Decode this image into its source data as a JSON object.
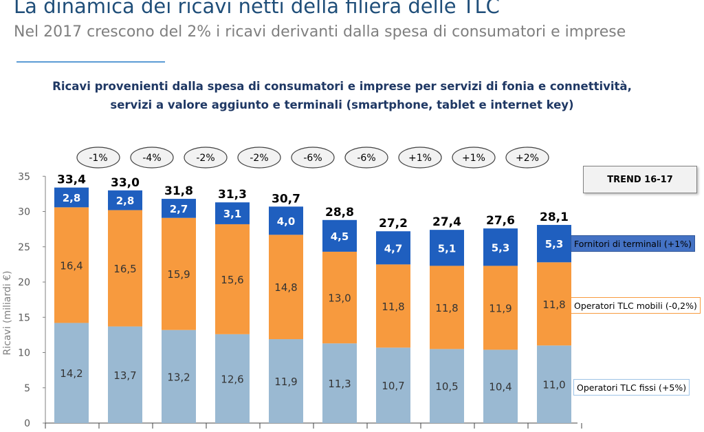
{
  "header": {
    "title": "La dinamica dei ricavi netti della filiera delle TLC",
    "subtitle": "Nel 2017 crescono del 2% i ricavi derivanti dalla spesa di consumatori e imprese"
  },
  "chart_title_lines": [
    "Ricavi provenienti dalla spesa di consumatori e imprese per servizi di fonia e connettività,",
    "servizi a valore aggiunto e terminali (smartphone, tablet e internet key)"
  ],
  "trend_label": "TREND 16-17",
  "legend": {
    "terminali": "Fornitori di terminali (+1%)",
    "mobili": "Operatori TLC mobili (-0,2%)",
    "fissi": "Operatori TLC fissi (+5%)"
  },
  "colors": {
    "fissi": "#9ab9d2",
    "mobili": "#f79a3e",
    "terminali": "#1f5fbf",
    "axis": "#7f7f7f"
  },
  "chart_data": {
    "type": "bar",
    "stacked": true,
    "ylabel": "Ricavi (miliardi €)",
    "ylim": [
      0,
      35
    ],
    "yticks": [
      0,
      5,
      10,
      15,
      20,
      25,
      30,
      35
    ],
    "grid": false,
    "series": [
      {
        "name": "Operatori TLC fissi",
        "key": "fissi",
        "values": [
          14.2,
          13.7,
          13.2,
          12.6,
          11.9,
          11.3,
          10.7,
          10.5,
          10.4,
          11.0
        ],
        "labels": [
          "14,2",
          "13,7",
          "13,2",
          "12,6",
          "11,9",
          "11,3",
          "10,7",
          "10,5",
          "10,4",
          "11,0"
        ]
      },
      {
        "name": "Operatori TLC mobili",
        "key": "mobili",
        "values": [
          16.4,
          16.5,
          15.9,
          15.6,
          14.8,
          13.0,
          11.8,
          11.8,
          11.9,
          11.8
        ],
        "labels": [
          "16,4",
          "16,5",
          "15,9",
          "15,6",
          "14,8",
          "13,0",
          "11,8",
          "11,8",
          "11,9",
          "11,8"
        ]
      },
      {
        "name": "Fornitori di terminali",
        "key": "terminali",
        "values": [
          2.8,
          2.8,
          2.7,
          3.1,
          4.0,
          4.5,
          4.7,
          5.1,
          5.3,
          5.3
        ],
        "labels": [
          "2,8",
          "2,8",
          "2,7",
          "3,1",
          "4,0",
          "4,5",
          "4,7",
          "5,1",
          "5,3",
          "5,3"
        ]
      }
    ],
    "totals": [
      33.4,
      33.0,
      31.8,
      31.3,
      30.7,
      28.8,
      27.2,
      27.4,
      27.6,
      28.1
    ],
    "total_labels": [
      "33,4",
      "33,0",
      "31,8",
      "31,3",
      "30,7",
      "28,8",
      "27,2",
      "27,4",
      "27,6",
      "28,1"
    ],
    "growth_labels": [
      "-1%",
      "-4%",
      "-2%",
      "-2%",
      "-6%",
      "-6%",
      "+1%",
      "+1%",
      "+2%"
    ]
  }
}
